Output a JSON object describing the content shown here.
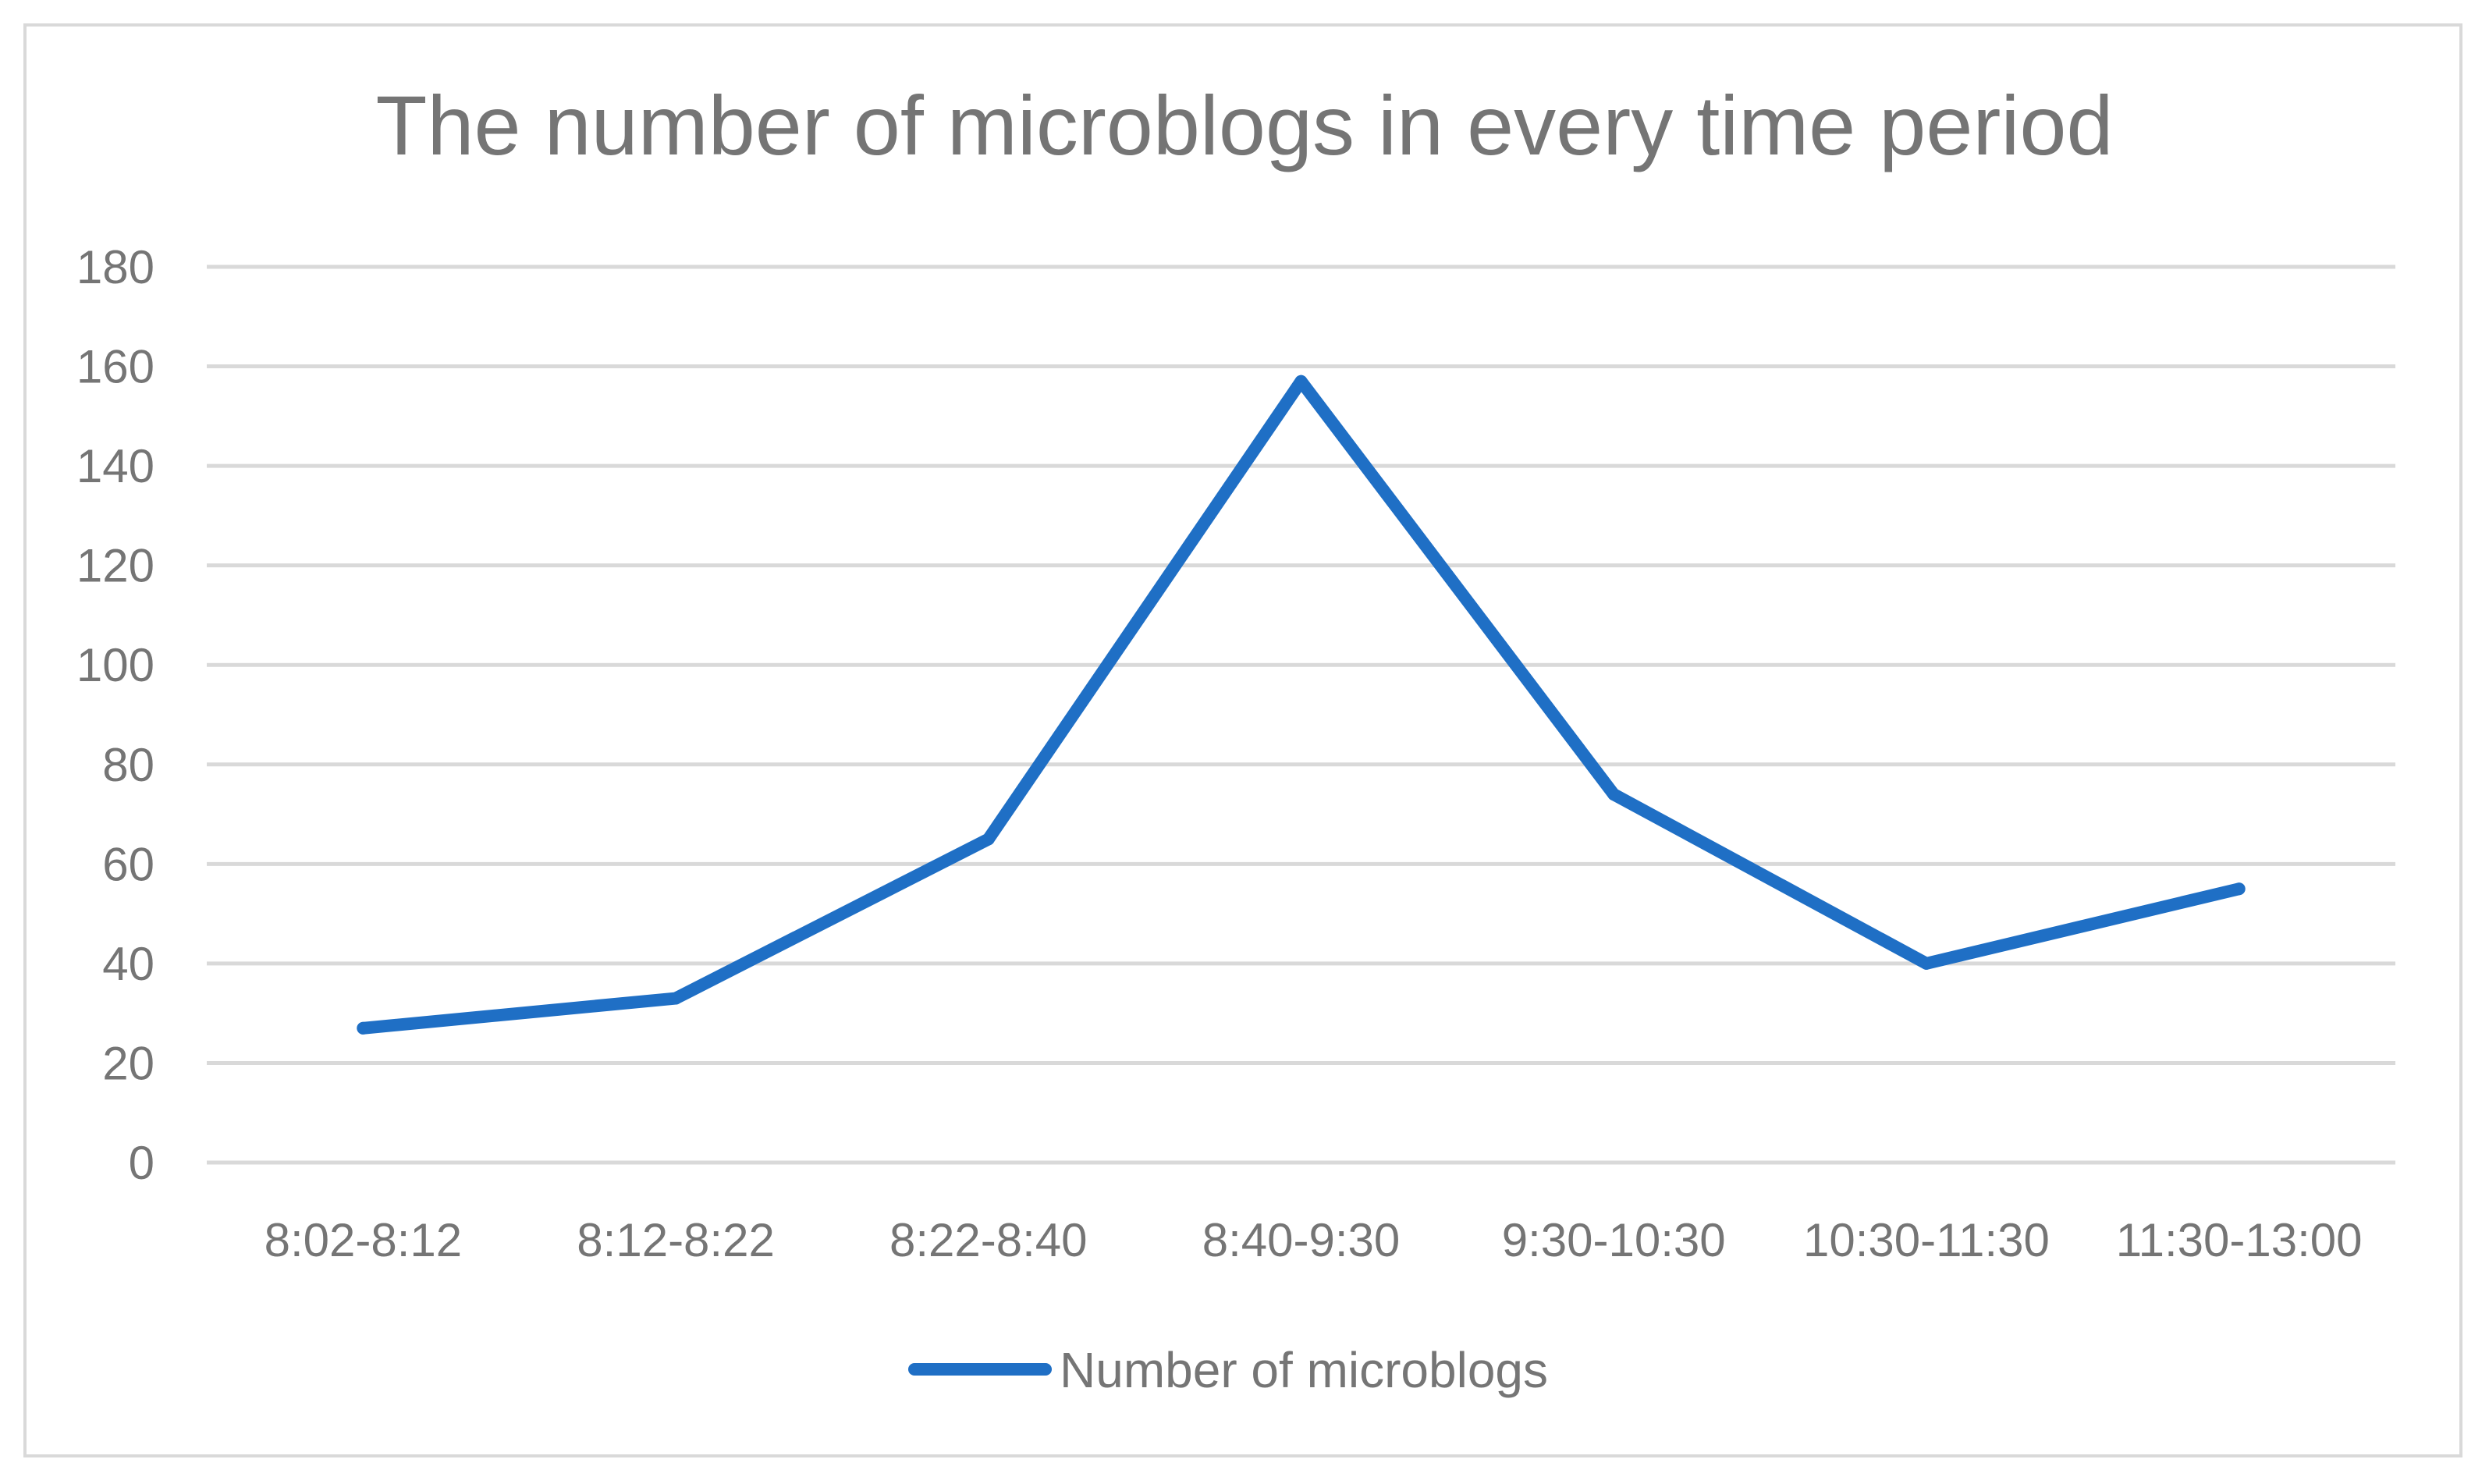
{
  "chart_data": {
    "type": "line",
    "title": "The number of microblogs in every time period",
    "categories": [
      "8:02-8:12",
      "8:12-8:22",
      "8:22-8:40",
      "8:40-9:30",
      "9:30-10:30",
      "10:30-11:30",
      "11:30-13:00"
    ],
    "series": [
      {
        "name": "Number of microblogs",
        "values": [
          27,
          33,
          65,
          157,
          74,
          40,
          55
        ],
        "color": "#1f6fc5"
      }
    ],
    "ylim": [
      0,
      180
    ],
    "yticks": [
      0,
      20,
      40,
      60,
      80,
      100,
      120,
      140,
      160,
      180
    ],
    "grid": true,
    "legend": "bottom"
  }
}
